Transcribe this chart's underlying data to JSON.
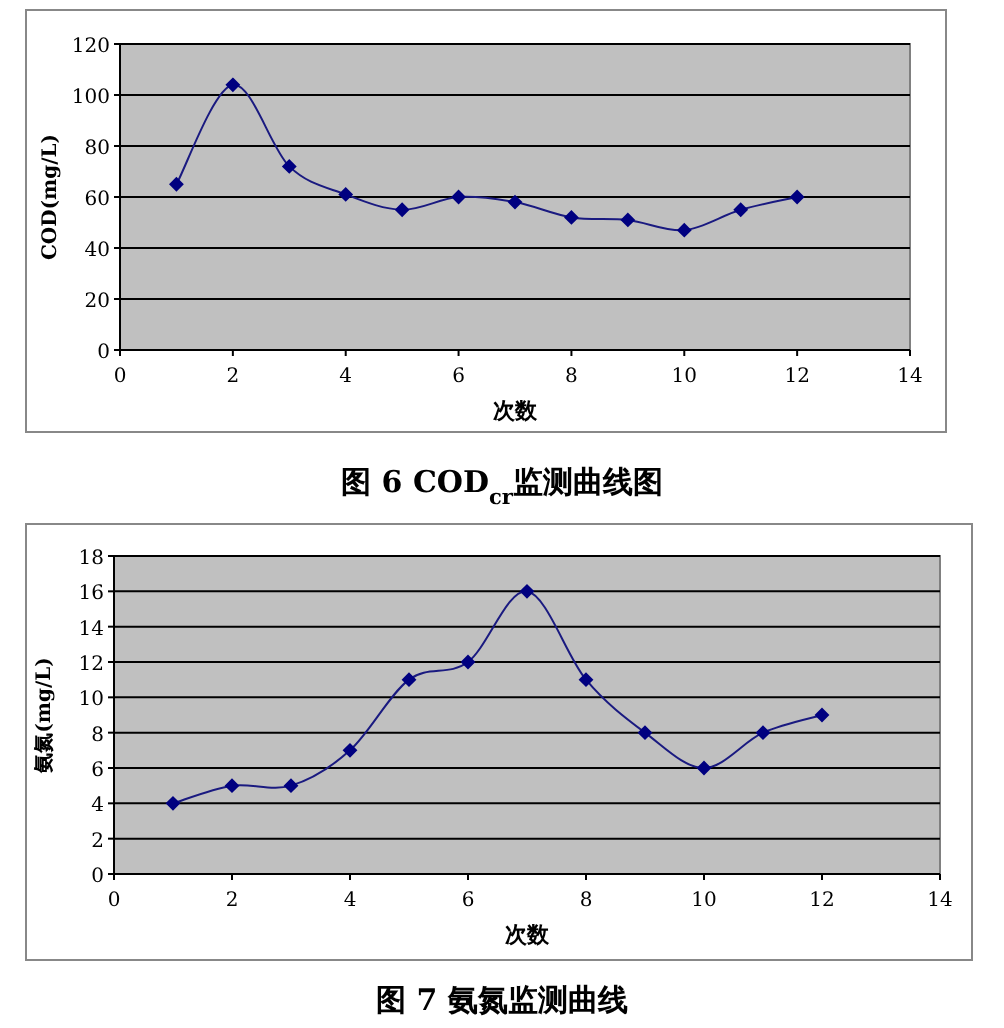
{
  "chart_data": [
    {
      "type": "line",
      "title": "图 6 COD$_{cr}$监测曲线图",
      "xlabel": "次数",
      "ylabel": "COD(mg/L)",
      "x": [
        1,
        2,
        3,
        4,
        5,
        6,
        7,
        8,
        9,
        10,
        11,
        12
      ],
      "series": [
        {
          "color": "#1a1a80",
          "values": [
            65,
            104,
            72,
            61,
            55,
            60,
            58,
            52,
            51,
            47,
            55,
            60
          ]
        }
      ],
      "xlim": [
        0,
        14
      ],
      "xticks": [
        0,
        2,
        4,
        6,
        8,
        10,
        12,
        14
      ],
      "ylim": [
        0,
        120
      ],
      "yticks": [
        0,
        20,
        40,
        60,
        80,
        100,
        120
      ],
      "grid": "y",
      "marker": "diamond"
    },
    {
      "type": "line",
      "title": "图 7 氨氮监测曲线",
      "xlabel": "次数",
      "ylabel": "氨氮(mg/L)",
      "x": [
        1,
        2,
        3,
        4,
        5,
        6,
        7,
        8,
        9,
        10,
        11,
        12
      ],
      "series": [
        {
          "color": "#1a1a80",
          "values": [
            4,
            5,
            5,
            7,
            11,
            12,
            16,
            11,
            8,
            6,
            8,
            9
          ]
        }
      ],
      "xlim": [
        0,
        14
      ],
      "xticks": [
        0,
        2,
        4,
        6,
        8,
        10,
        12,
        14
      ],
      "ylim": [
        0,
        18
      ],
      "yticks": [
        0,
        2,
        4,
        6,
        8,
        10,
        12,
        14,
        16,
        18
      ],
      "grid": "y",
      "marker": "diamond"
    }
  ]
}
